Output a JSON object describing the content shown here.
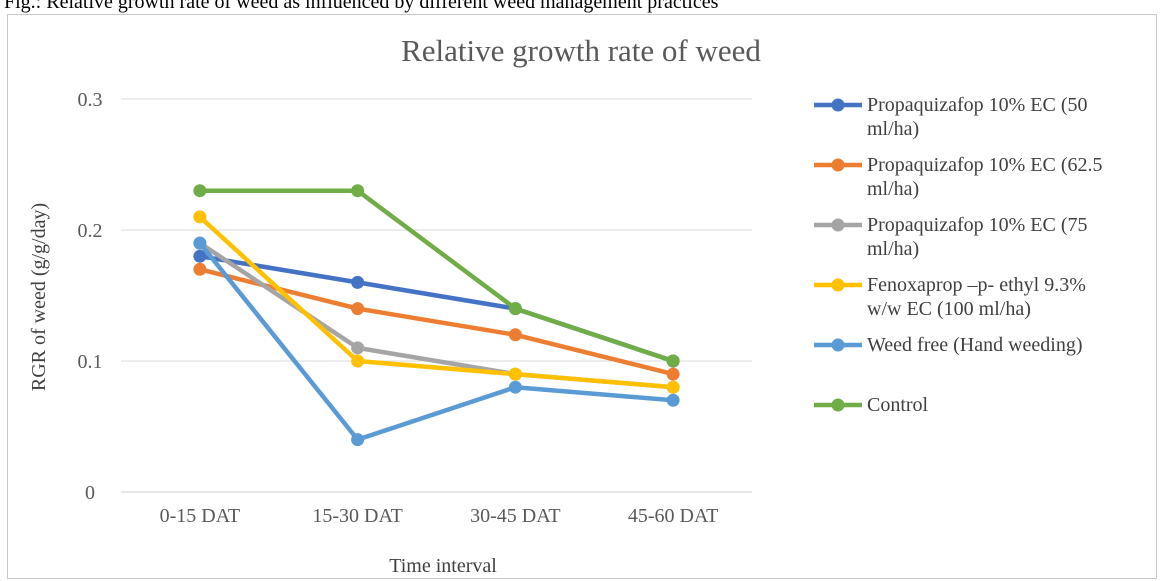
{
  "caption": "Fig.: Relative growth rate of weed as influenced by different weed management practices",
  "chart_data": {
    "type": "line",
    "title": "Relative growth rate of weed",
    "xlabel": "Time interval",
    "ylabel": "RGR of weed (g/g/day)",
    "categories": [
      "0-15 DAT",
      "15-30 DAT",
      "30-45 DAT",
      "45-60 DAT"
    ],
    "ylim": [
      0,
      0.3
    ],
    "yticks": [
      "0",
      "0.1",
      "0.2",
      "0.3"
    ],
    "ytick_values": [
      0,
      0.1,
      0.2,
      0.3
    ],
    "grid": true,
    "legend_position": "right",
    "series": [
      {
        "name": "Propaquizafop 10% EC (50 ml/ha)",
        "legend_lines": [
          "Propaquizafop 10% EC (50",
          "ml/ha)"
        ],
        "color": "#4472C4",
        "values": [
          0.18,
          0.16,
          0.14,
          0.1
        ]
      },
      {
        "name": "Propaquizafop 10% EC (62.5 ml/ha)",
        "legend_lines": [
          "Propaquizafop 10% EC (62.5",
          "ml/ha)"
        ],
        "color": "#ED7D31",
        "values": [
          0.17,
          0.14,
          0.12,
          0.09
        ]
      },
      {
        "name": "Propaquizafop 10% EC (75 ml/ha)",
        "legend_lines": [
          "Propaquizafop 10% EC (75",
          "ml/ha)"
        ],
        "color": "#A5A5A5",
        "values": [
          0.19,
          0.11,
          0.09,
          0.08
        ]
      },
      {
        "name": "Fenoxaprop –p- ethyl 9.3% w/w EC (100 ml/ha)",
        "legend_lines": [
          "Fenoxaprop –p- ethyl 9.3%",
          "w/w EC (100 ml/ha)"
        ],
        "color": "#FFC000",
        "values": [
          0.21,
          0.1,
          0.09,
          0.08
        ]
      },
      {
        "name": "Weed free (Hand weeding)",
        "legend_lines": [
          "Weed free (Hand weeding)"
        ],
        "color": "#5B9BD5",
        "values": [
          0.19,
          0.04,
          0.08,
          0.07
        ]
      },
      {
        "name": "Control",
        "legend_lines": [
          "Control"
        ],
        "color": "#70AD47",
        "values": [
          0.23,
          0.23,
          0.14,
          0.1
        ]
      }
    ]
  }
}
